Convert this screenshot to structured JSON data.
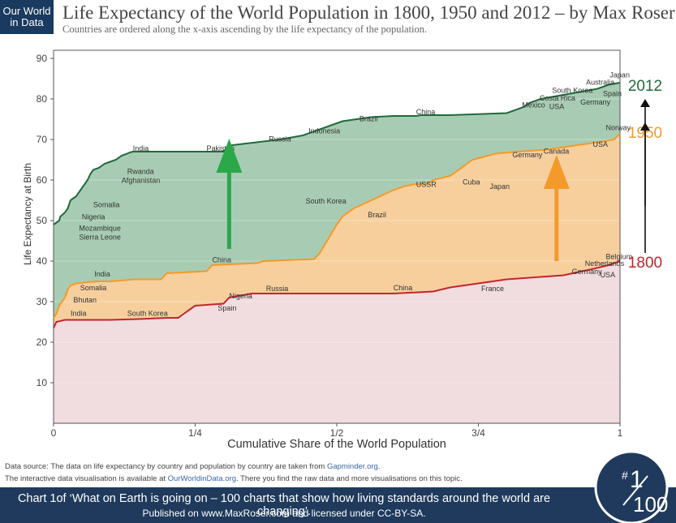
{
  "logo": {
    "line1": "Our World",
    "line2": "in Data"
  },
  "title": "Life Expectancy of the World Population in 1800, 1950 and 2012 – by Max Roser",
  "subtitle": "Countries are ordered along the x-axis ascending by the life expectancy of the population.",
  "source": {
    "line1_prefix": "Data source:  The data on life expectancy by country and population by country are taken from ",
    "line1_link": "Gapminder.org",
    "line1_suffix": ".",
    "line2_prefix": "The interactive data visualisation is available at ",
    "line2_link": "OurWorldinData.org",
    "line2_suffix": ". There you find the raw data and more visualisations on this topic."
  },
  "footer": {
    "line1": "Chart 1of ‘What on Earth is going on – 100 charts that show how living standards around the world are changing’.",
    "line2": "Published on www.MaxRoser.com and licensed under CC-BY-SA."
  },
  "badge": {
    "hash": "#",
    "num": "1",
    "total": "100"
  },
  "chart_data": {
    "type": "area",
    "title": "Life Expectancy of the World Population in 1800, 1950 and 2012 – by Max Roser",
    "xlabel": "Cumulative Share of the World Population",
    "ylabel": "Life Expectancy at Birth",
    "xlim": [
      0,
      1
    ],
    "ylim": [
      0,
      92
    ],
    "yticks": [
      10,
      20,
      30,
      40,
      50,
      60,
      70,
      80,
      90
    ],
    "xticks": [
      {
        "value": 0,
        "label": "0"
      },
      {
        "value": 0.25,
        "label": "1/4"
      },
      {
        "value": 0.5,
        "label": "1/2"
      },
      {
        "value": 0.75,
        "label": "3/4"
      },
      {
        "value": 1,
        "label": "1"
      }
    ],
    "grid": true,
    "colors": {
      "s2012": "#1f6b3b",
      "s1950": "#f39a2b",
      "s1800": "#c3262b",
      "fill2012": "#a8ccb3",
      "fill1950": "#f7cf9d",
      "fill1800": "#f1dcdf"
    },
    "series": [
      {
        "name": "2012",
        "x": [
          0,
          0.005,
          0.01,
          0.012,
          0.02,
          0.025,
          0.03,
          0.04,
          0.045,
          0.05,
          0.06,
          0.065,
          0.07,
          0.08,
          0.09,
          0.1,
          0.11,
          0.12,
          0.13,
          0.135,
          0.14,
          0.3,
          0.31,
          0.37,
          0.4,
          0.44,
          0.5,
          0.51,
          0.56,
          0.6,
          0.64,
          0.65,
          0.7,
          0.74,
          0.8,
          0.83,
          0.84,
          0.86,
          0.88,
          0.9,
          0.92,
          0.94,
          0.96,
          0.98,
          1
        ],
        "y": [
          49,
          49.5,
          50,
          51,
          52,
          53,
          55,
          56,
          57,
          58,
          60,
          61.5,
          62.5,
          63,
          64,
          64.5,
          65,
          66,
          66.5,
          66.8,
          67,
          67,
          68.5,
          69.5,
          70,
          71,
          74,
          74.5,
          75.5,
          75.8,
          75.8,
          76,
          76,
          76.2,
          76.5,
          78,
          79,
          80,
          80.5,
          81,
          81.5,
          82,
          82.5,
          83.5,
          84
        ]
      },
      {
        "name": "1950",
        "x": [
          0,
          0.005,
          0.01,
          0.02,
          0.025,
          0.03,
          0.04,
          0.06,
          0.08,
          0.1,
          0.12,
          0.14,
          0.19,
          0.2,
          0.27,
          0.28,
          0.36,
          0.37,
          0.46,
          0.47,
          0.5,
          0.51,
          0.53,
          0.6,
          0.62,
          0.64,
          0.66,
          0.67,
          0.7,
          0.72,
          0.74,
          0.78,
          0.82,
          0.87,
          0.92,
          0.97,
          0.99,
          1
        ],
        "y": [
          26,
          27,
          29,
          31,
          33,
          34,
          34.5,
          34.8,
          35,
          35,
          35.2,
          35.5,
          35.5,
          37,
          37.5,
          39,
          39.5,
          40,
          40.5,
          42,
          49,
          51,
          53,
          57.5,
          58.5,
          59,
          59,
          60,
          61,
          63,
          65,
          66.5,
          67,
          67.5,
          68.5,
          69.5,
          70,
          71.5
        ]
      },
      {
        "name": "1800",
        "x": [
          0,
          0.005,
          0.02,
          0.05,
          0.1,
          0.15,
          0.2,
          0.22,
          0.23,
          0.24,
          0.25,
          0.3,
          0.31,
          0.35,
          0.4,
          0.5,
          0.6,
          0.67,
          0.7,
          0.75,
          0.8,
          0.85,
          0.9,
          0.95,
          0.98,
          1
        ],
        "y": [
          23.5,
          25,
          25.5,
          25.5,
          25.5,
          25.7,
          26,
          26,
          27,
          28,
          29,
          29.5,
          31,
          32,
          32,
          32,
          32,
          32.5,
          33.5,
          34.5,
          35.5,
          36,
          36.5,
          38,
          39,
          40
        ]
      }
    ],
    "series_labels": [
      {
        "text": "2012",
        "x": 1,
        "y": 84
      },
      {
        "text": "1950",
        "x": 1,
        "y": 72
      },
      {
        "text": "1800",
        "x": 1,
        "y": 40
      }
    ],
    "annotations": [
      {
        "text": "India",
        "x": 0.14,
        "y": 67.2,
        "color": "#333"
      },
      {
        "text": "Pakistan",
        "x": 0.27,
        "y": 67.2,
        "color": "#333"
      },
      {
        "text": "Russia",
        "x": 0.38,
        "y": 69.5,
        "color": "#333"
      },
      {
        "text": "Indonesia",
        "x": 0.45,
        "y": 71.5,
        "color": "#333"
      },
      {
        "text": "Brazil",
        "x": 0.54,
        "y": 74.5,
        "color": "#333"
      },
      {
        "text": "China",
        "x": 0.64,
        "y": 76.2,
        "color": "#333"
      },
      {
        "text": "Rwanda",
        "x": 0.13,
        "y": 61.5,
        "color": "#333"
      },
      {
        "text": "Afghanistan",
        "x": 0.12,
        "y": 59.3,
        "color": "#333"
      },
      {
        "text": "Somalia",
        "x": 0.07,
        "y": 53.3,
        "color": "#333"
      },
      {
        "text": "Nigeria",
        "x": 0.05,
        "y": 50.3,
        "color": "#333"
      },
      {
        "text": "Mozambique",
        "x": 0.045,
        "y": 47.5,
        "color": "#333"
      },
      {
        "text": "Sierra Leone",
        "x": 0.045,
        "y": 45.3,
        "color": "#333"
      },
      {
        "text": "Mexico",
        "x": 0.827,
        "y": 77.9,
        "color": "#333"
      },
      {
        "text": "Costa Rica",
        "x": 0.858,
        "y": 79.6,
        "color": "#333"
      },
      {
        "text": "South Korea",
        "x": 0.88,
        "y": 81.5,
        "color": "#333"
      },
      {
        "text": "USA",
        "x": 0.875,
        "y": 77.5,
        "color": "#333"
      },
      {
        "text": "Australia",
        "x": 0.94,
        "y": 83.5,
        "color": "#333"
      },
      {
        "text": "Japan",
        "x": 0.982,
        "y": 85.3,
        "color": "#333"
      },
      {
        "text": "Spain",
        "x": 0.97,
        "y": 80.7,
        "color": "#333"
      },
      {
        "text": "Germany",
        "x": 0.93,
        "y": 78.6,
        "color": "#333"
      },
      {
        "text": "India",
        "x": 0.072,
        "y": 36.2,
        "color": "#333"
      },
      {
        "text": "Somalia",
        "x": 0.047,
        "y": 32.8,
        "color": "#333"
      },
      {
        "text": "Bhutan",
        "x": 0.035,
        "y": 29.8,
        "color": "#333"
      },
      {
        "text": "India",
        "x": 0.03,
        "y": 26.5,
        "color": "#333"
      },
      {
        "text": "South Korea",
        "x": 0.13,
        "y": 26.5,
        "color": "#333"
      },
      {
        "text": "China",
        "x": 0.28,
        "y": 39.7,
        "color": "#333"
      },
      {
        "text": "South Korea",
        "x": 0.445,
        "y": 54.2,
        "color": "#333"
      },
      {
        "text": "Brazil",
        "x": 0.555,
        "y": 50.8,
        "color": "#333"
      },
      {
        "text": "USSR",
        "x": 0.64,
        "y": 58.3,
        "color": "#333"
      },
      {
        "text": "Cuba",
        "x": 0.722,
        "y": 58.9,
        "color": "#333"
      },
      {
        "text": "Japan",
        "x": 0.77,
        "y": 57.8,
        "color": "#333"
      },
      {
        "text": "Germany",
        "x": 0.81,
        "y": 65.6,
        "color": "#333"
      },
      {
        "text": "Canada",
        "x": 0.865,
        "y": 66.5,
        "color": "#333"
      },
      {
        "text": "USA",
        "x": 0.952,
        "y": 68.2,
        "color": "#333"
      },
      {
        "text": "Norway",
        "x": 0.975,
        "y": 72.3,
        "color": "#333"
      },
      {
        "text": "Nigeria",
        "x": 0.31,
        "y": 30.8,
        "color": "#333"
      },
      {
        "text": "Spain",
        "x": 0.29,
        "y": 27.8,
        "color": "#333"
      },
      {
        "text": "Russia",
        "x": 0.375,
        "y": 32.6,
        "color": "#333"
      },
      {
        "text": "China",
        "x": 0.6,
        "y": 32.8,
        "color": "#333"
      },
      {
        "text": "France",
        "x": 0.755,
        "y": 32.6,
        "color": "#333"
      },
      {
        "text": "Germany",
        "x": 0.915,
        "y": 36.8,
        "color": "#333"
      },
      {
        "text": "USA",
        "x": 0.965,
        "y": 36,
        "color": "#333"
      },
      {
        "text": "Netherlands",
        "x": 0.938,
        "y": 38.8,
        "color": "#333"
      },
      {
        "text": "Belgium",
        "x": 0.975,
        "y": 40.5,
        "color": "#333"
      }
    ],
    "arrows": [
      {
        "color": "#2ba84a",
        "x": 0.31,
        "y_from": 43,
        "y_to": 65
      },
      {
        "color": "#f39a2b",
        "x": 0.888,
        "y_from": 40,
        "y_to": 61
      }
    ]
  }
}
